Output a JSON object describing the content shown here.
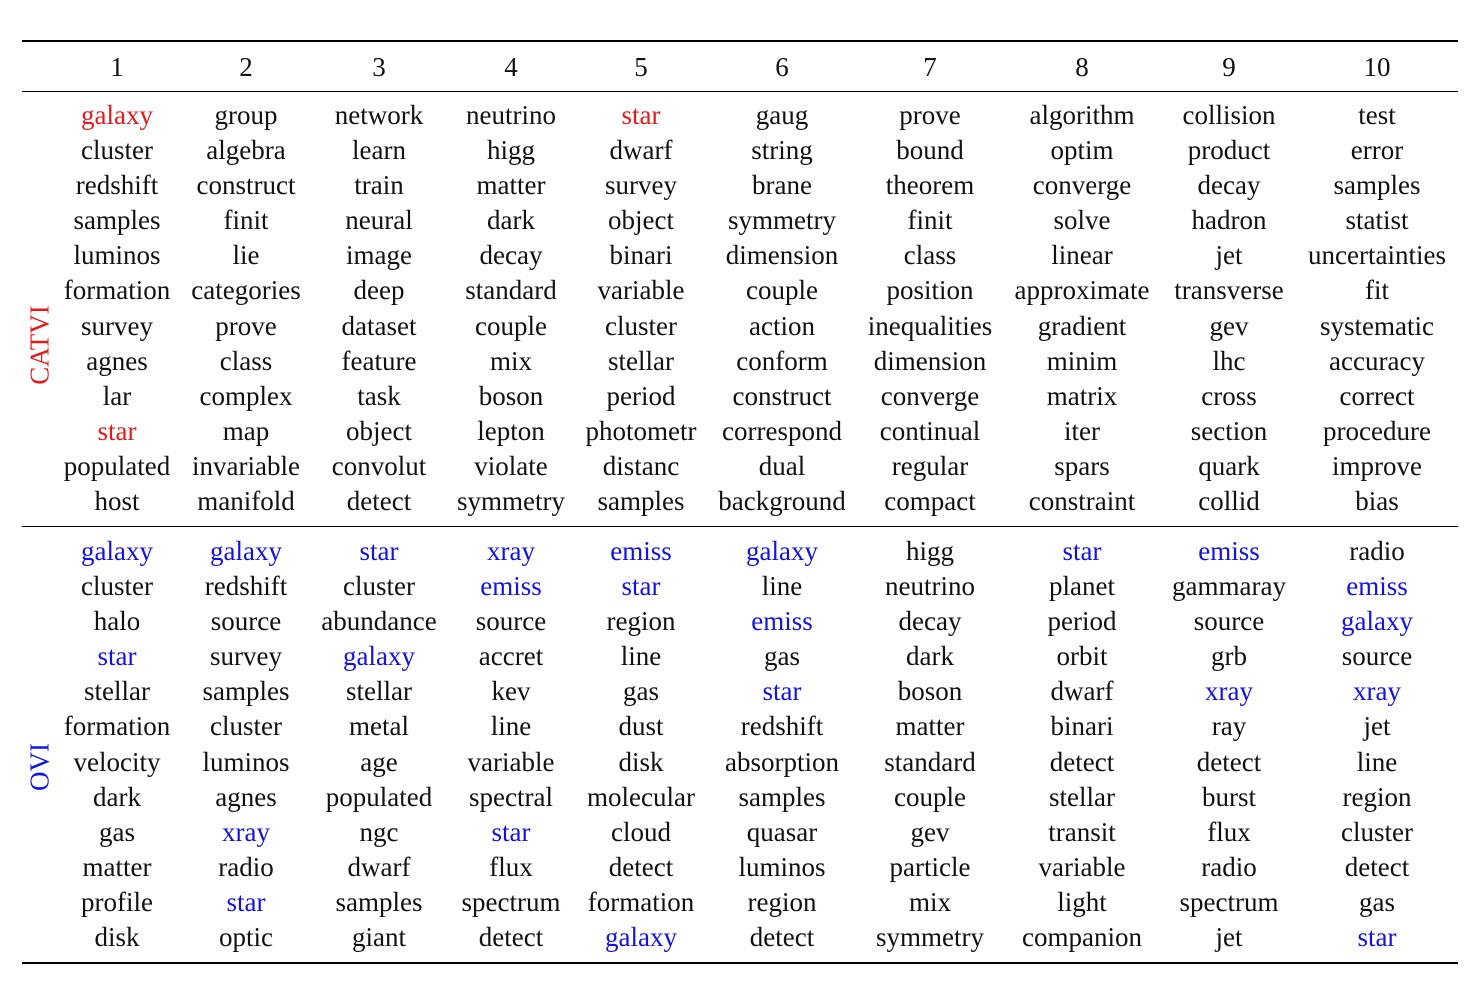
{
  "header": [
    "1",
    "2",
    "3",
    "4",
    "5",
    "6",
    "7",
    "8",
    "9",
    "10"
  ],
  "colors": {
    "catvi_highlight": "#e8191a",
    "ovi_highlight": "#1212e6"
  },
  "sections": [
    {
      "label": "CATVI",
      "highlight": "red",
      "columns": [
        [
          "galaxy",
          "cluster",
          "redshift",
          "samples",
          "luminos",
          "formation",
          "survey",
          "agnes",
          "lar",
          "star",
          "populated",
          "host"
        ],
        [
          "group",
          "algebra",
          "construct",
          "finit",
          "lie",
          "categories",
          "prove",
          "class",
          "complex",
          "map",
          "invariable",
          "manifold"
        ],
        [
          "network",
          "learn",
          "train",
          "neural",
          "image",
          "deep",
          "dataset",
          "feature",
          "task",
          "object",
          "convolut",
          "detect"
        ],
        [
          "neutrino",
          "higg",
          "matter",
          "dark",
          "decay",
          "standard",
          "couple",
          "mix",
          "boson",
          "lepton",
          "violate",
          "symmetry"
        ],
        [
          "star",
          "dwarf",
          "survey",
          "object",
          "binari",
          "variable",
          "cluster",
          "stellar",
          "period",
          "photometr",
          "distanc",
          "samples"
        ],
        [
          "gaug",
          "string",
          "brane",
          "symmetry",
          "dimension",
          "couple",
          "action",
          "conform",
          "construct",
          "correspond",
          "dual",
          "background"
        ],
        [
          "prove",
          "bound",
          "theorem",
          "finit",
          "class",
          "position",
          "inequalities",
          "dimension",
          "converge",
          "continual",
          "regular",
          "compact"
        ],
        [
          "algorithm",
          "optim",
          "converge",
          "solve",
          "linear",
          "approximate",
          "gradient",
          "minim",
          "matrix",
          "iter",
          "spars",
          "constraint"
        ],
        [
          "collision",
          "product",
          "decay",
          "hadron",
          "jet",
          "transverse",
          "gev",
          "lhc",
          "cross",
          "section",
          "quark",
          "collid"
        ],
        [
          "test",
          "error",
          "samples",
          "statist",
          "uncertainties",
          "fit",
          "systematic",
          "accuracy",
          "correct",
          "procedure",
          "improve",
          "bias"
        ]
      ],
      "highlighted": [
        [
          0,
          0
        ],
        [
          0,
          9
        ],
        [
          4,
          0
        ]
      ]
    },
    {
      "label": "OVI",
      "highlight": "blue",
      "columns": [
        [
          "galaxy",
          "cluster",
          "halo",
          "star",
          "stellar",
          "formation",
          "velocity",
          "dark",
          "gas",
          "matter",
          "profile",
          "disk"
        ],
        [
          "galaxy",
          "redshift",
          "source",
          "survey",
          "samples",
          "cluster",
          "luminos",
          "agnes",
          "xray",
          "radio",
          "star",
          "optic"
        ],
        [
          "star",
          "cluster",
          "abundance",
          "galaxy",
          "stellar",
          "metal",
          "age",
          "populated",
          "ngc",
          "dwarf",
          "samples",
          "giant"
        ],
        [
          "xray",
          "emiss",
          "source",
          "accret",
          "kev",
          "line",
          "variable",
          "spectral",
          "star",
          "flux",
          "spectrum",
          "detect"
        ],
        [
          "emiss",
          "star",
          "region",
          "line",
          "gas",
          "dust",
          "disk",
          "molecular",
          "cloud",
          "detect",
          "formation",
          "galaxy"
        ],
        [
          "galaxy",
          "line",
          "emiss",
          "gas",
          "star",
          "redshift",
          "absorption",
          "samples",
          "quasar",
          "luminos",
          "region",
          "detect"
        ],
        [
          "higg",
          "neutrino",
          "decay",
          "dark",
          "boson",
          "matter",
          "standard",
          "couple",
          "gev",
          "particle",
          "mix",
          "symmetry"
        ],
        [
          "star",
          "planet",
          "period",
          "orbit",
          "dwarf",
          "binari",
          "detect",
          "stellar",
          "transit",
          "variable",
          "light",
          "companion"
        ],
        [
          "emiss",
          "gammaray",
          "source",
          "grb",
          "xray",
          "ray",
          "detect",
          "burst",
          "flux",
          "radio",
          "spectrum",
          "jet"
        ],
        [
          "radio",
          "emiss",
          "galaxy",
          "source",
          "xray",
          "jet",
          "line",
          "region",
          "cluster",
          "detect",
          "gas",
          "star"
        ]
      ],
      "highlighted": [
        [
          0,
          0
        ],
        [
          0,
          3
        ],
        [
          1,
          0
        ],
        [
          1,
          8
        ],
        [
          1,
          10
        ],
        [
          2,
          0
        ],
        [
          2,
          3
        ],
        [
          3,
          0
        ],
        [
          3,
          1
        ],
        [
          3,
          8
        ],
        [
          4,
          0
        ],
        [
          4,
          1
        ],
        [
          4,
          11
        ],
        [
          5,
          0
        ],
        [
          5,
          2
        ],
        [
          5,
          4
        ],
        [
          7,
          0
        ],
        [
          8,
          0
        ],
        [
          8,
          4
        ],
        [
          9,
          1
        ],
        [
          9,
          2
        ],
        [
          9,
          4
        ],
        [
          9,
          11
        ]
      ]
    }
  ]
}
